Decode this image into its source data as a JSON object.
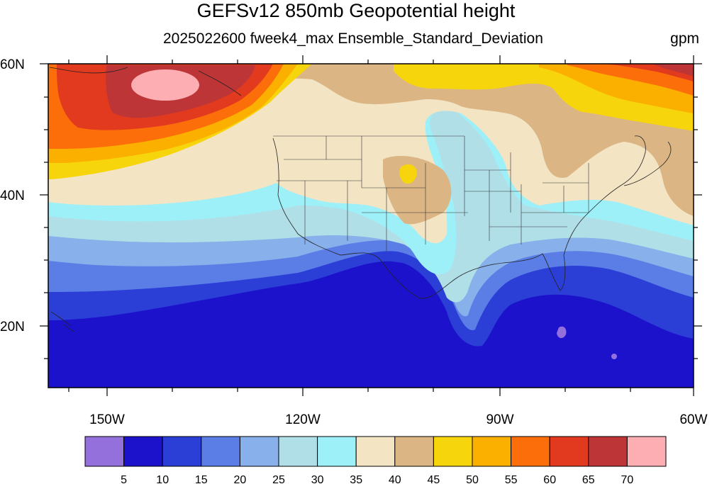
{
  "header": {
    "title": "GEFSv12 850mb Geopotential height",
    "subtitle": "2025022600 fweek4_max Ensemble_Standard_Deviation",
    "units": "gpm"
  },
  "map": {
    "lat_labels": [
      "60N",
      "40N",
      "20N"
    ],
    "lon_labels": [
      "150W",
      "120W",
      "90W",
      "60W"
    ],
    "lat_range": [
      10,
      60
    ],
    "lon_range": [
      -159,
      -59
    ]
  },
  "colorbar": {
    "colors": [
      "#9370db",
      "#1c12cc",
      "#2b3ed6",
      "#5a7ee6",
      "#88b0ea",
      "#b0dfe8",
      "#9ef0f8",
      "#f3e4c4",
      "#dbb584",
      "#f7d50c",
      "#fbb000",
      "#fc6e0a",
      "#e13a1e",
      "#be3538",
      "#fdaeb2"
    ],
    "labels": [
      "5",
      "10",
      "15",
      "20",
      "25",
      "30",
      "35",
      "40",
      "45",
      "50",
      "55",
      "60",
      "65",
      "70"
    ]
  }
}
